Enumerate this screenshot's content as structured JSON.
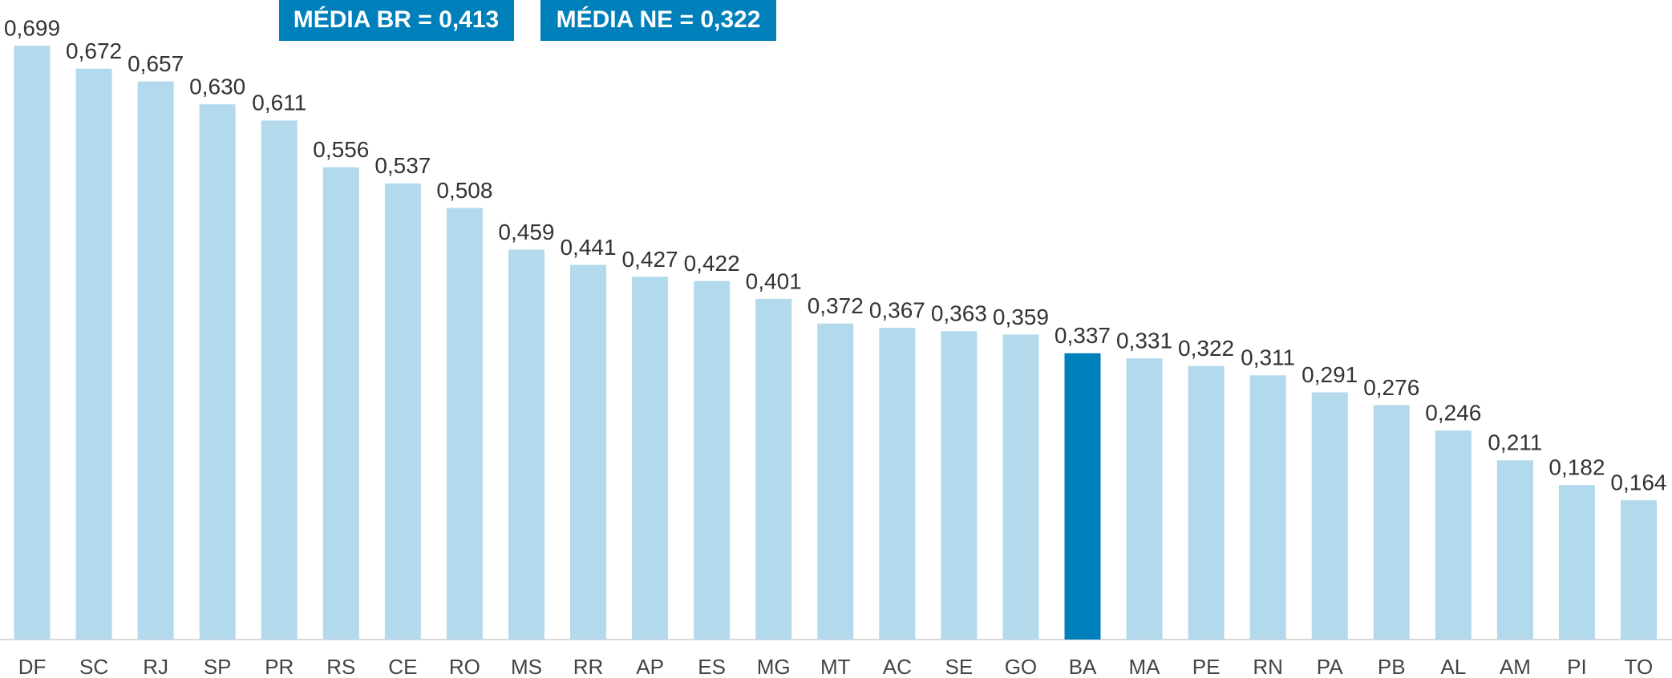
{
  "chart_data": {
    "type": "bar",
    "annotations": [
      "MÉDIA BR = 0,413",
      "MÉDIA NE = 0,322"
    ],
    "categories": [
      "DF",
      "SC",
      "RJ",
      "SP",
      "PR",
      "RS",
      "CE",
      "RO",
      "MS",
      "RR",
      "AP",
      "ES",
      "MG",
      "MT",
      "AC",
      "SE",
      "GO",
      "BA",
      "MA",
      "PE",
      "RN",
      "PA",
      "PB",
      "AL",
      "AM",
      "PI",
      "TO"
    ],
    "values": [
      0.699,
      0.672,
      0.657,
      0.63,
      0.611,
      0.556,
      0.537,
      0.508,
      0.459,
      0.441,
      0.427,
      0.422,
      0.401,
      0.372,
      0.367,
      0.363,
      0.359,
      0.337,
      0.331,
      0.322,
      0.311,
      0.291,
      0.276,
      0.246,
      0.211,
      0.182,
      0.164
    ],
    "value_labels": [
      "0,699",
      "0,672",
      "0,657",
      "0,630",
      "0,611",
      "0,556",
      "0,537",
      "0,508",
      "0,459",
      "0,441",
      "0,427",
      "0,422",
      "0,401",
      "0,372",
      "0,367",
      "0,363",
      "0,359",
      "0,337",
      "0,331",
      "0,322",
      "0,311",
      "0,291",
      "0,276",
      "0,246",
      "0,211",
      "0,182",
      "0,164"
    ],
    "colors": [
      "#b3d9ec",
      "#b3d9ec",
      "#b3d9ec",
      "#b3d9ec",
      "#b3d9ec",
      "#b3d9ec",
      "#b3d9ec",
      "#b3d9ec",
      "#b3d9ec",
      "#b3d9ec",
      "#b3d9ec",
      "#b3d9ec",
      "#b3d9ec",
      "#b3d9ec",
      "#b3d9ec",
      "#b3d9ec",
      "#b3d9ec",
      "#0080bb",
      "#b3d9ec",
      "#b3d9ec",
      "#b3d9ec",
      "#b3d9ec",
      "#b3d9ec",
      "#b3d9ec",
      "#b3d9ec",
      "#b3d9ec",
      "#b3d9ec"
    ],
    "ylim": [
      0,
      0.7
    ]
  }
}
